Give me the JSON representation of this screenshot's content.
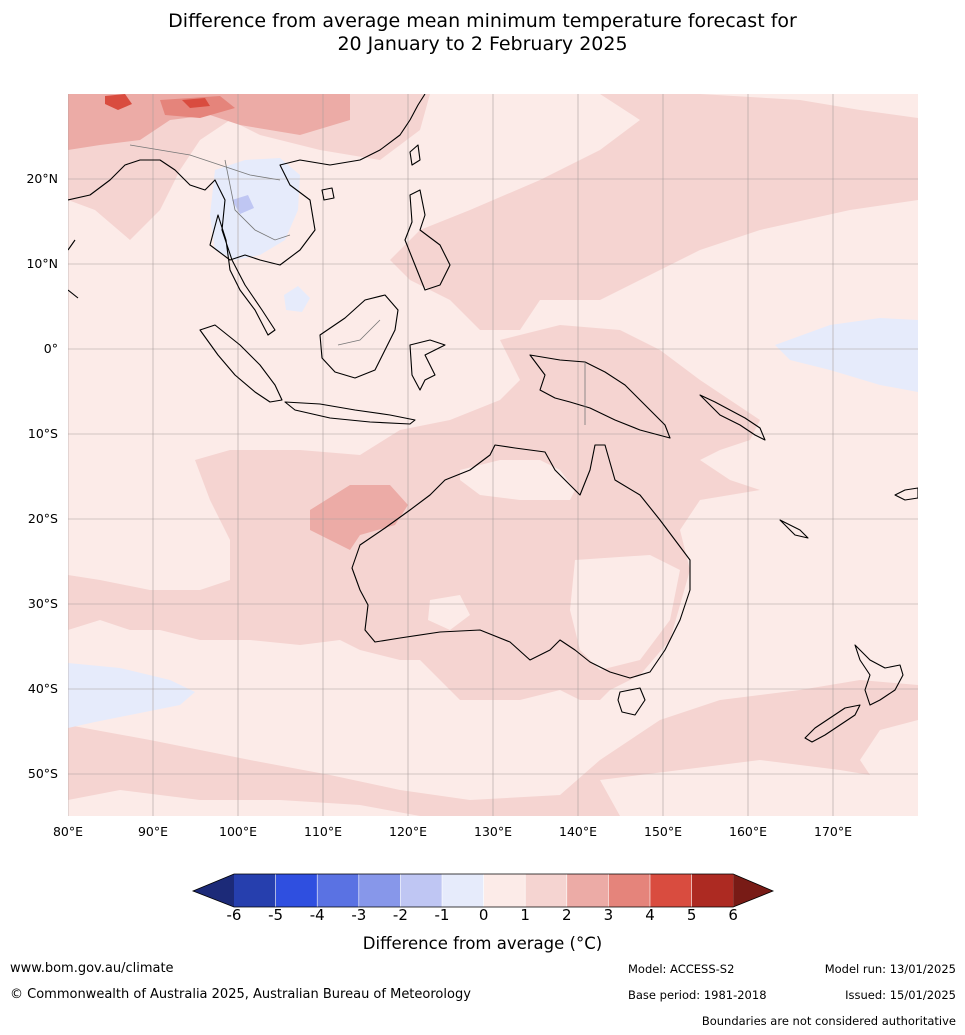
{
  "title": {
    "line1": "Difference from average mean minimum temperature forecast for",
    "line2": "20 January to 2 February 2025"
  },
  "map": {
    "lat_labels": [
      "20°N",
      "10°N",
      "0°",
      "10°S",
      "20°S",
      "30°S",
      "40°S",
      "50°S"
    ],
    "lon_labels": [
      "80°E",
      "90°E",
      "100°E",
      "110°E",
      "120°E",
      "130°E",
      "140°E",
      "150°E",
      "160°E",
      "170°E"
    ]
  },
  "colorbar": {
    "title": "Difference from average (°C)",
    "labels": [
      "-6",
      "-5",
      "-4",
      "-3",
      "-2",
      "-1",
      "0",
      "1",
      "2",
      "3",
      "4",
      "5",
      "6"
    ],
    "colors": {
      "lt_-6": "#1c2a78",
      "-6_-5": "#263fae",
      "-5_-4": "#2f4fe0",
      "-4_-3": "#5a72e3",
      "-3_-2": "#8797ea",
      "-2_-1": "#bfc6f3",
      "-1_0": "#e6ebfb",
      "0_1": "#fcebe8",
      "1_2": "#f5d4d1",
      "2_3": "#ecaba6",
      "3_4": "#e5847b",
      "4_5": "#d94c3f",
      "5_6": "#ad2a22",
      "gt_6": "#781b16"
    }
  },
  "footer": {
    "website": "www.bom.gov.au/climate",
    "copyright": "© Commonwealth of Australia 2025, Australian Bureau of Meteorology",
    "model": "Model: ACCESS-S2",
    "base_period": "Base period: 1981-2018",
    "model_run": "Model run: 13/01/2025",
    "issued": "Issued: 15/01/2025",
    "disclaimer": "Boundaries are not considered authoritative"
  }
}
